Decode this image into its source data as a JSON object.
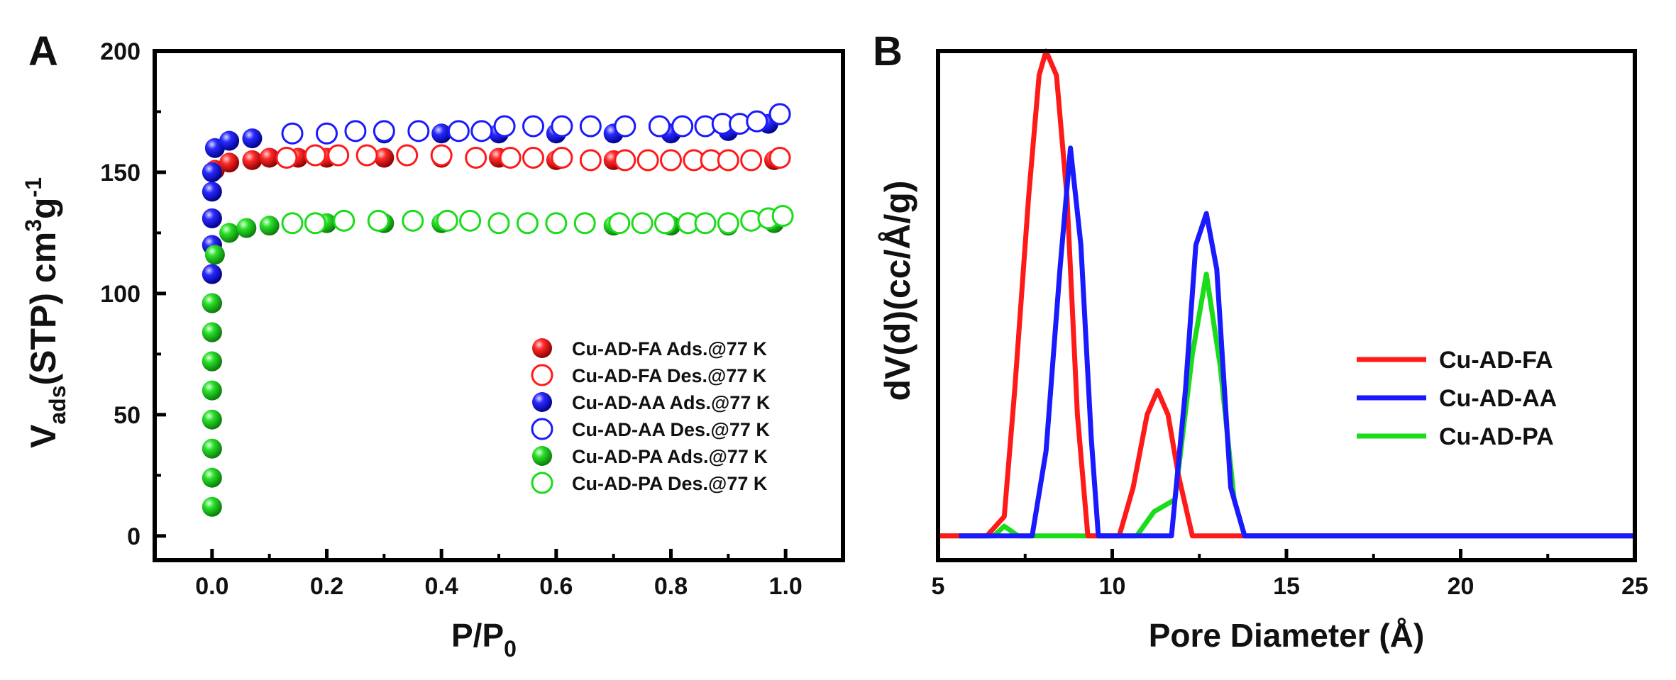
{
  "chart_data": [
    {
      "panel": "A",
      "type": "scatter",
      "xlabel_main": "P/P",
      "xlabel_sub": "0",
      "ylabel_v": "V",
      "ylabel_sub": "ads",
      "ylabel_mid": "(STP) cm",
      "ylabel_sup3": "3",
      "ylabel_g": "g",
      "ylabel_supm1": "-1",
      "xlim": [
        -0.1,
        1.1
      ],
      "ylim": [
        -10,
        200
      ],
      "xticks": [
        0.0,
        0.2,
        0.4,
        0.6,
        0.8,
        1.0
      ],
      "xtick_labels": [
        "0.0",
        "0.2",
        "0.4",
        "0.6",
        "0.8",
        "1.0"
      ],
      "yticks": [
        0,
        50,
        100,
        150,
        200
      ],
      "ytick_labels": [
        "0",
        "50",
        "100",
        "150",
        "200"
      ],
      "legend_position": "bottom-right",
      "series": [
        {
          "name": "Cu-AD-FA Ads.@77 K",
          "color": "#ff1a1a",
          "filled": true,
          "x": [
            0.0,
            0.0,
            0.0,
            0.0,
            0.0,
            0.0,
            0.005,
            0.03,
            0.07,
            0.1,
            0.15,
            0.2,
            0.3,
            0.4,
            0.5,
            0.6,
            0.7,
            0.8,
            0.9,
            0.98
          ],
          "y": [
            72,
            84,
            96,
            108,
            120,
            131,
            151,
            154,
            155,
            156,
            156,
            156,
            156,
            156,
            156,
            155,
            155,
            155,
            155,
            155
          ]
        },
        {
          "name": "Cu-AD-FA Des.@77 K",
          "color": "#ff1a1a",
          "filled": false,
          "x": [
            0.13,
            0.18,
            0.22,
            0.27,
            0.34,
            0.4,
            0.46,
            0.52,
            0.56,
            0.61,
            0.66,
            0.72,
            0.76,
            0.8,
            0.84,
            0.87,
            0.9,
            0.94,
            0.99
          ],
          "y": [
            156,
            157,
            157,
            157,
            157,
            157,
            156,
            156,
            156,
            156,
            155,
            155,
            155,
            155,
            155,
            155,
            155,
            155,
            156
          ]
        },
        {
          "name": "Cu-AD-AA Ads.@77 K",
          "color": "#1a1aff",
          "filled": true,
          "x": [
            0.0,
            0.0,
            0.0,
            0.0,
            0.0,
            0.0,
            0.005,
            0.03,
            0.07,
            0.2,
            0.3,
            0.4,
            0.5,
            0.6,
            0.7,
            0.8,
            0.9,
            0.97
          ],
          "y": [
            96,
            108,
            120,
            131,
            142,
            150,
            160,
            163,
            164,
            166,
            166,
            166,
            166,
            166,
            166,
            166,
            167,
            170
          ]
        },
        {
          "name": "Cu-AD-AA Des.@77 K",
          "color": "#1a1aff",
          "filled": false,
          "x": [
            0.14,
            0.2,
            0.25,
            0.3,
            0.36,
            0.43,
            0.47,
            0.51,
            0.56,
            0.61,
            0.66,
            0.72,
            0.78,
            0.82,
            0.86,
            0.89,
            0.92,
            0.95,
            0.99
          ],
          "y": [
            166,
            166,
            167,
            167,
            167,
            167,
            167,
            169,
            169,
            169,
            169,
            169,
            169,
            169,
            169,
            170,
            170,
            171,
            174
          ]
        },
        {
          "name": "Cu-AD-PA Ads.@77 K",
          "color": "#1adc1a",
          "filled": true,
          "x": [
            0.0,
            0.0,
            0.0,
            0.0,
            0.0,
            0.0,
            0.0,
            0.0,
            0.005,
            0.03,
            0.06,
            0.1,
            0.2,
            0.3,
            0.4,
            0.5,
            0.6,
            0.7,
            0.8,
            0.9,
            0.98
          ],
          "y": [
            12,
            24,
            36,
            48,
            60,
            72,
            84,
            96,
            116,
            125,
            127,
            128,
            129,
            129,
            129,
            129,
            129,
            128,
            128,
            128,
            129
          ]
        },
        {
          "name": "Cu-AD-PA Des.@77 K",
          "color": "#1adc1a",
          "filled": false,
          "x": [
            0.14,
            0.18,
            0.23,
            0.29,
            0.35,
            0.41,
            0.45,
            0.5,
            0.55,
            0.6,
            0.65,
            0.71,
            0.75,
            0.79,
            0.83,
            0.86,
            0.9,
            0.94,
            0.97,
            0.995
          ],
          "y": [
            129,
            129,
            130,
            130,
            130,
            130,
            130,
            129,
            129,
            129,
            129,
            129,
            129,
            129,
            129,
            129,
            129,
            130,
            131,
            132
          ]
        }
      ]
    },
    {
      "panel": "B",
      "type": "line",
      "xlabel": "Pore Diameter (Å)",
      "ylabel": "dV(d)(cc/Å/g)",
      "xlim": [
        5,
        25
      ],
      "ylim": [
        -0.1,
        2.0
      ],
      "xticks": [
        5,
        10,
        15,
        20,
        25
      ],
      "xtick_labels": [
        "5",
        "10",
        "15",
        "20",
        "25"
      ],
      "legend_position": "middle-right",
      "series": [
        {
          "name": "Cu-AD-FA",
          "color": "#ff1a1a",
          "x": [
            5.0,
            6.4,
            6.9,
            7.2,
            7.6,
            7.9,
            8.1,
            8.4,
            8.7,
            9.0,
            9.3,
            9.6,
            10.2,
            10.6,
            11.0,
            11.3,
            11.6,
            11.9,
            12.3,
            12.8,
            13.6,
            25.0
          ],
          "y": [
            0.0,
            0.0,
            0.08,
            0.6,
            1.4,
            1.9,
            2.0,
            1.9,
            1.4,
            0.5,
            0.0,
            0.0,
            0.0,
            0.2,
            0.5,
            0.6,
            0.5,
            0.25,
            0.0,
            0.0,
            0.0,
            0.0
          ]
        },
        {
          "name": "Cu-AD-AA",
          "color": "#1a1aff",
          "x": [
            5.6,
            7.7,
            8.1,
            8.5,
            8.8,
            9.1,
            9.4,
            9.6,
            11.7,
            12.1,
            12.4,
            12.7,
            13.0,
            13.4,
            13.8,
            25.0
          ],
          "y": [
            0.0,
            0.0,
            0.35,
            1.1,
            1.6,
            1.2,
            0.4,
            0.0,
            0.0,
            0.6,
            1.2,
            1.33,
            1.1,
            0.2,
            0.0,
            0.0
          ]
        },
        {
          "name": "Cu-AD-PA",
          "color": "#1adc1a",
          "x": [
            5.0,
            6.6,
            6.9,
            7.3,
            10.7,
            11.2,
            11.8,
            12.3,
            12.7,
            13.1,
            13.5,
            13.8,
            25.0
          ],
          "y": [
            0.0,
            0.0,
            0.04,
            0.0,
            0.0,
            0.1,
            0.15,
            0.75,
            1.08,
            0.7,
            0.15,
            0.0,
            0.0
          ]
        }
      ]
    }
  ],
  "panel_labels": {
    "a": "A",
    "b": "B"
  }
}
